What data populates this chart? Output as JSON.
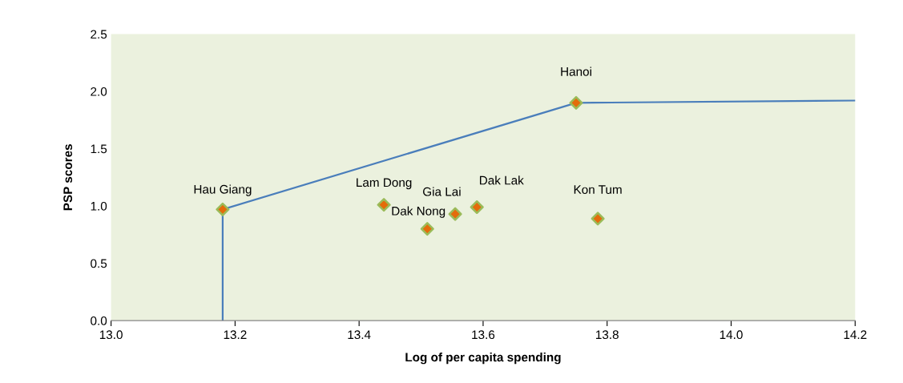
{
  "chart_data": {
    "type": "scatter",
    "xlabel": "Log of per capita spending",
    "ylabel": "PSP scores",
    "xlim": [
      13.0,
      14.2
    ],
    "xticks": [
      {
        "value": 13.0,
        "label": "13.0"
      },
      13.2,
      13.4,
      13.6,
      13.8,
      {
        "value": 14.0,
        "label": "14.0"
      },
      14.2
    ],
    "ylim": [
      0,
      2.5
    ],
    "yticks": [
      {
        "value": 0,
        "label": "0.0"
      },
      0.5,
      {
        "value": 1,
        "label": "1.0"
      },
      1.5,
      {
        "value": 2,
        "label": "2.0"
      },
      2.5
    ],
    "grid": false,
    "legend": false,
    "series": [
      {
        "type": "line",
        "color": "#4a7ebb",
        "marker": "none",
        "line_style": "solid",
        "x": [
          13.18,
          13.18,
          13.75,
          14.2
        ],
        "values": [
          0,
          0.97,
          1.9,
          1.92
        ]
      },
      {
        "type": "scatter",
        "color": "#e46c0a",
        "marker": "diamond",
        "x": [
          13.18,
          13.44,
          13.51,
          13.555,
          13.59,
          13.75,
          13.785
        ],
        "values": [
          0.97,
          1.01,
          0.8,
          0.93,
          0.99,
          1.9,
          0.89
        ]
      }
    ],
    "annotations": [
      {
        "text": "Hau Giang",
        "x": 13.18,
        "y": 0.97
      },
      {
        "text": "Lam Dong",
        "x": 13.44,
        "y": 1.01
      },
      {
        "text": "Dak Nong",
        "x": 13.51,
        "y": 0.8
      },
      {
        "text": "Gia Lai",
        "x": 13.555,
        "y": 0.93
      },
      {
        "text": "Dak Lak",
        "x": 13.59,
        "y": 0.99
      },
      {
        "text": "Hanoi",
        "x": 13.75,
        "y": 1.9
      },
      {
        "text": "Kon Tum",
        "x": 13.785,
        "y": 0.89
      }
    ]
  }
}
